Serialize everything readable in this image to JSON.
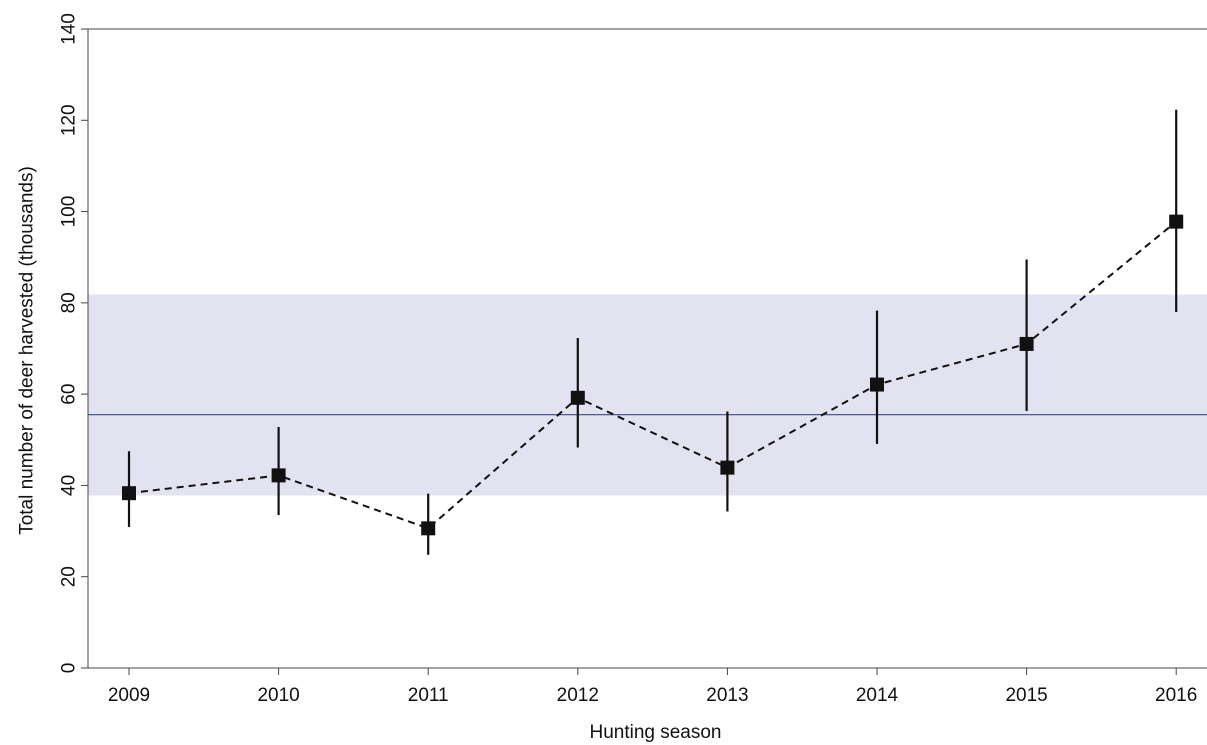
{
  "chart_data": {
    "type": "line",
    "title": "",
    "xlabel": "Hunting season",
    "ylabel": "Total number of deer harvested (thousands)",
    "ylim": [
      0,
      140
    ],
    "yticks": [
      0,
      20,
      40,
      60,
      80,
      100,
      120,
      140
    ],
    "categories": [
      "2009",
      "2010",
      "2011",
      "2012",
      "2013",
      "2014",
      "2015",
      "2016"
    ],
    "series": [
      {
        "values": [
          38.3,
          42.2,
          30.6,
          59.2,
          43.9,
          62.1,
          71.0,
          97.8
        ],
        "lower": [
          30.9,
          33.5,
          24.8,
          48.3,
          34.3,
          49.1,
          56.3,
          78.0
        ],
        "upper": [
          47.5,
          52.8,
          38.2,
          72.3,
          56.2,
          78.3,
          89.5,
          122.3
        ],
        "marker": "square",
        "line_style": "dashed",
        "color": "#111111"
      }
    ],
    "reference_band": {
      "lower": 37.8,
      "upper": 81.8,
      "color": "#e2e2f0"
    },
    "reference_line": {
      "value": 55.5,
      "color": "#3a4a8a"
    },
    "grid": false
  }
}
